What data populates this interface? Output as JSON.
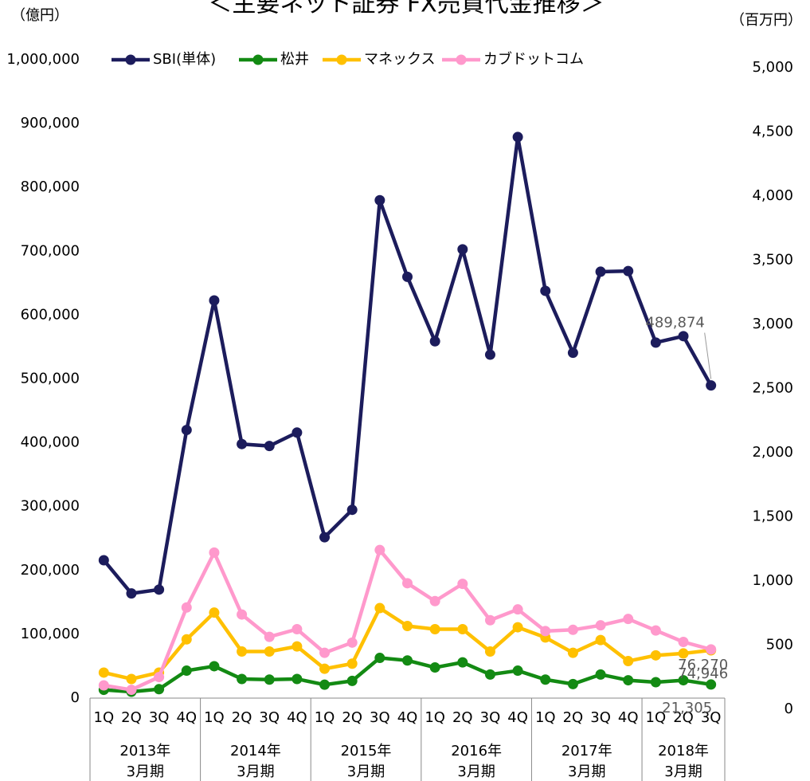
{
  "chart_data": {
    "type": "line",
    "title": "＜主要ネット証券 FX売買代金推移＞",
    "y_axis_label": "（億円）",
    "y2_axis_label": "（百万円）",
    "categories": [
      "1Q",
      "2Q",
      "3Q",
      "4Q",
      "1Q",
      "2Q",
      "3Q",
      "4Q",
      "1Q",
      "2Q",
      "3Q",
      "4Q",
      "1Q",
      "2Q",
      "3Q",
      "4Q",
      "1Q",
      "2Q",
      "3Q",
      "4Q",
      "1Q",
      "2Q",
      "3Q"
    ],
    "groups": [
      [
        "2013年",
        "3月期"
      ],
      [
        "2014年",
        "3月期"
      ],
      [
        "2015年",
        "3月期"
      ],
      [
        "2016年",
        "3月期"
      ],
      [
        "2017年",
        "3月期"
      ],
      [
        "2018年",
        "3月期"
      ]
    ],
    "series": [
      {
        "name": "SBI(単体)",
        "color": "#1c1c5c",
        "values": [
          216000,
          164000,
          170000,
          420000,
          623000,
          398000,
          395000,
          416000,
          252000,
          295000,
          780000,
          660000,
          559000,
          703000,
          538000,
          879000,
          638000,
          541000,
          668000,
          669000,
          557000,
          567000,
          489874
        ],
        "value_labels": [
          null,
          null,
          null,
          null,
          null,
          null,
          null,
          null,
          null,
          null,
          null,
          null,
          null,
          null,
          null,
          null,
          null,
          null,
          null,
          null,
          null,
          null,
          "489,874"
        ]
      },
      {
        "name": "松井",
        "color": "#138a13",
        "values": [
          13000,
          10000,
          14000,
          43000,
          50000,
          30000,
          29000,
          30000,
          21000,
          27000,
          63000,
          59000,
          48000,
          56000,
          37000,
          43000,
          29000,
          22000,
          37000,
          28000,
          25000,
          28000,
          21305
        ],
        "value_labels": [
          null,
          null,
          null,
          null,
          null,
          null,
          null,
          null,
          null,
          null,
          null,
          null,
          null,
          null,
          null,
          null,
          null,
          null,
          null,
          null,
          null,
          null,
          "21,305"
        ]
      },
      {
        "name": "マネックス",
        "color": "#ffc000",
        "values": [
          40000,
          30000,
          40000,
          92000,
          134000,
          73000,
          73000,
          81000,
          46000,
          54000,
          141000,
          113000,
          108000,
          108000,
          73000,
          111000,
          95000,
          71000,
          91000,
          58000,
          67000,
          70000,
          74946
        ],
        "value_labels": [
          null,
          null,
          null,
          null,
          null,
          null,
          null,
          null,
          null,
          null,
          null,
          null,
          null,
          null,
          null,
          null,
          null,
          null,
          null,
          null,
          null,
          null,
          "74,946"
        ]
      },
      {
        "name": "カブドットコム",
        "color": "#ff99cc",
        "values": [
          20000,
          13000,
          33000,
          142000,
          228000,
          131000,
          96000,
          108000,
          71000,
          87000,
          232000,
          180000,
          152000,
          179000,
          122000,
          139000,
          105000,
          107000,
          114000,
          124000,
          106000,
          88000,
          76270
        ],
        "value_labels": [
          null,
          null,
          null,
          null,
          null,
          null,
          null,
          null,
          null,
          null,
          null,
          null,
          null,
          null,
          null,
          null,
          null,
          null,
          null,
          null,
          null,
          null,
          "76,270"
        ]
      }
    ],
    "ylim": [
      0,
      1000000
    ],
    "yticks": [
      {
        "value": 0,
        "label": "0"
      },
      {
        "value": 100000,
        "label": "100,000"
      },
      {
        "value": 200000,
        "label": "200,000"
      },
      {
        "value": 300000,
        "label": "300,000"
      },
      {
        "value": 400000,
        "label": "400,000"
      },
      {
        "value": 500000,
        "label": "500,000"
      },
      {
        "value": 600000,
        "label": "600,000"
      },
      {
        "value": 700000,
        "label": "700,000"
      },
      {
        "value": 800000,
        "label": "800,000"
      },
      {
        "value": 900000,
        "label": "900,000"
      },
      {
        "value": 1000000,
        "label": "1,000,000"
      }
    ],
    "y2lim": [
      0,
      5000
    ],
    "y2ticks": [
      {
        "value": 0,
        "label": "0"
      },
      {
        "value": 500,
        "label": "500"
      },
      {
        "value": 1000,
        "label": "1,000"
      },
      {
        "value": 1500,
        "label": "1,500"
      },
      {
        "value": 2000,
        "label": "2,000"
      },
      {
        "value": 2500,
        "label": "2,500"
      },
      {
        "value": 3000,
        "label": "3,000"
      },
      {
        "value": 3500,
        "label": "3,500"
      },
      {
        "value": 4000,
        "label": "4,000"
      },
      {
        "value": 4500,
        "label": "4,500"
      },
      {
        "value": 5000,
        "label": "5,000"
      }
    ],
    "legend": "top"
  }
}
